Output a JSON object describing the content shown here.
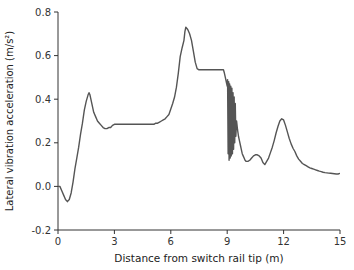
{
  "chart_data": {
    "type": "line",
    "xlabel": "Distance from switch rail tip (m)",
    "ylabel": "Lateral vibration acceleration (m/s²)",
    "xlim": [
      0,
      15
    ],
    "ylim": [
      -0.2,
      0.8
    ],
    "xticks": [
      0,
      3,
      6,
      9,
      12,
      15
    ],
    "yticks": [
      -0.2,
      {
        "value": 0.0,
        "label": "0.0"
      },
      0.2,
      0.4,
      0.6,
      0.8
    ],
    "color": "#555555",
    "grid": false,
    "x": [
      0.0,
      0.1,
      0.2,
      0.3,
      0.4,
      0.5,
      0.6,
      0.7,
      0.8,
      0.9,
      1.0,
      1.1,
      1.2,
      1.3,
      1.4,
      1.5,
      1.6,
      1.65,
      1.7,
      1.8,
      1.9,
      2.0,
      2.1,
      2.2,
      2.3,
      2.4,
      2.5,
      2.6,
      2.7,
      2.8,
      2.9,
      3.0,
      3.1,
      3.2,
      3.3,
      3.4,
      3.5,
      3.6,
      3.7,
      3.8,
      3.9,
      4.0,
      4.1,
      4.2,
      4.3,
      4.4,
      4.5,
      4.6,
      4.7,
      4.8,
      4.9,
      5.0,
      5.1,
      5.2,
      5.3,
      5.4,
      5.5,
      5.6,
      5.7,
      5.8,
      5.9,
      6.0,
      6.1,
      6.2,
      6.3,
      6.4,
      6.5,
      6.6,
      6.7,
      6.75,
      6.8,
      6.9,
      7.0,
      7.1,
      7.2,
      7.3,
      7.4,
      7.5,
      7.6,
      7.7,
      7.8,
      7.9,
      8.0,
      8.1,
      8.2,
      8.3,
      8.4,
      8.5,
      8.6,
      8.7,
      8.75,
      8.8,
      8.85,
      8.9,
      8.95,
      9.0,
      9.02,
      9.05,
      9.08,
      9.1,
      9.13,
      9.16,
      9.19,
      9.22,
      9.25,
      9.28,
      9.31,
      9.34,
      9.37,
      9.4,
      9.43,
      9.46,
      9.5,
      9.55,
      9.6,
      9.65,
      9.7,
      9.75,
      9.8,
      9.85,
      9.9,
      9.95,
      10.0,
      10.1,
      10.2,
      10.3,
      10.4,
      10.5,
      10.6,
      10.7,
      10.75,
      10.8,
      10.9,
      11.0,
      11.1,
      11.2,
      11.3,
      11.4,
      11.5,
      11.6,
      11.7,
      11.8,
      11.9,
      12.0,
      12.1,
      12.2,
      12.3,
      12.4,
      12.5,
      12.6,
      12.7,
      12.8,
      12.9,
      13.0,
      13.1,
      13.2,
      13.3,
      13.4,
      13.5,
      13.6,
      13.7,
      13.8,
      13.9,
      14.0,
      14.1,
      14.2,
      14.3,
      14.4,
      14.5,
      14.6,
      14.7,
      14.8,
      14.9,
      15.0
    ],
    "values": [
      0.0,
      0.0,
      -0.02,
      -0.04,
      -0.06,
      -0.07,
      -0.06,
      -0.03,
      0.02,
      0.08,
      0.13,
      0.18,
      0.24,
      0.29,
      0.35,
      0.39,
      0.42,
      0.43,
      0.42,
      0.38,
      0.34,
      0.32,
      0.3,
      0.29,
      0.28,
      0.27,
      0.265,
      0.265,
      0.27,
      0.27,
      0.28,
      0.285,
      0.285,
      0.285,
      0.285,
      0.285,
      0.285,
      0.285,
      0.285,
      0.285,
      0.285,
      0.285,
      0.285,
      0.285,
      0.285,
      0.285,
      0.285,
      0.285,
      0.285,
      0.285,
      0.285,
      0.285,
      0.285,
      0.29,
      0.29,
      0.295,
      0.3,
      0.305,
      0.31,
      0.32,
      0.33,
      0.355,
      0.38,
      0.41,
      0.455,
      0.52,
      0.595,
      0.635,
      0.67,
      0.71,
      0.73,
      0.72,
      0.7,
      0.67,
      0.62,
      0.57,
      0.54,
      0.535,
      0.535,
      0.535,
      0.535,
      0.535,
      0.535,
      0.535,
      0.535,
      0.535,
      0.535,
      0.535,
      0.535,
      0.535,
      0.535,
      0.535,
      0.52,
      0.5,
      0.48,
      0.46,
      0.49,
      0.15,
      0.48,
      0.12,
      0.47,
      0.13,
      0.46,
      0.14,
      0.45,
      0.15,
      0.43,
      0.17,
      0.41,
      0.2,
      0.38,
      0.23,
      0.3,
      0.26,
      0.23,
      0.21,
      0.19,
      0.17,
      0.15,
      0.14,
      0.13,
      0.12,
      0.115,
      0.115,
      0.12,
      0.13,
      0.14,
      0.145,
      0.145,
      0.14,
      0.135,
      0.13,
      0.11,
      0.1,
      0.115,
      0.13,
      0.155,
      0.18,
      0.21,
      0.245,
      0.275,
      0.3,
      0.31,
      0.305,
      0.28,
      0.25,
      0.22,
      0.195,
      0.175,
      0.16,
      0.14,
      0.125,
      0.115,
      0.105,
      0.1,
      0.095,
      0.09,
      0.085,
      0.082,
      0.079,
      0.076,
      0.073,
      0.07,
      0.068,
      0.065,
      0.063,
      0.062,
      0.061,
      0.06,
      0.059,
      0.058,
      0.057,
      0.057,
      0.06
    ]
  }
}
